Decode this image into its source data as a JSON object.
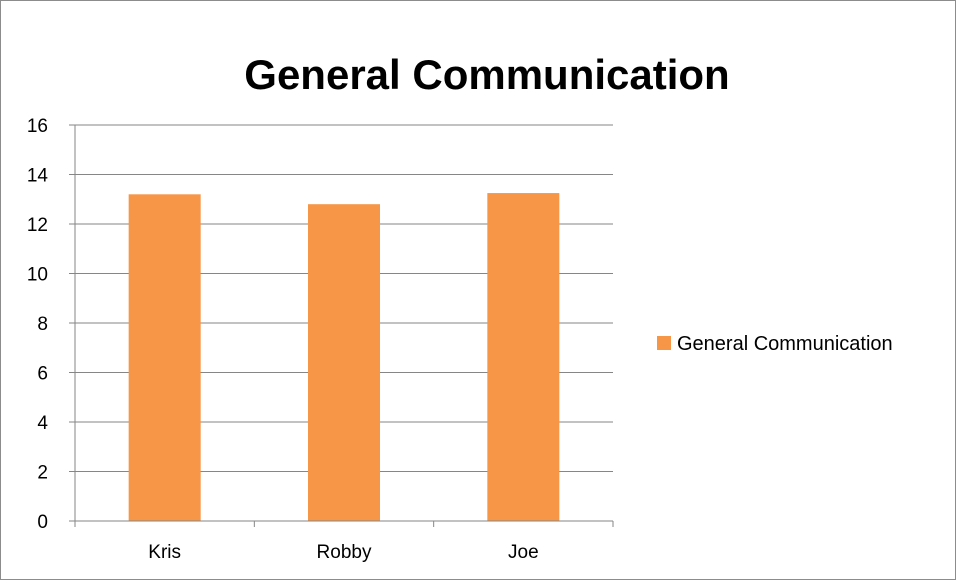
{
  "chart_data": {
    "type": "bar",
    "title": "General Communication",
    "categories": [
      "Kris",
      "Robby",
      "Joe"
    ],
    "series": [
      {
        "name": "General Communication",
        "values": [
          13.2,
          12.8,
          13.25
        ],
        "color": "#f79646"
      }
    ],
    "ylim": [
      0,
      16
    ],
    "y_ticks": [
      "0",
      "2",
      "4",
      "6",
      "8",
      "10",
      "12",
      "14",
      "16"
    ],
    "grid": true,
    "legend_position": "right",
    "gridline_color": "#868686",
    "axis_color": "#868686"
  }
}
